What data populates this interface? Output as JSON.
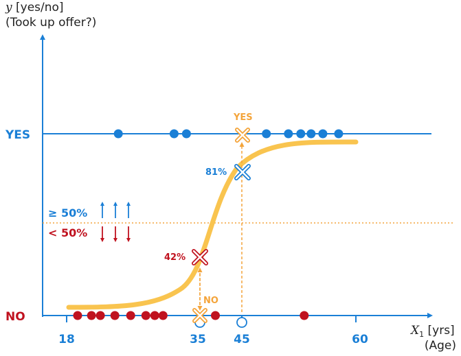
{
  "colors": {
    "axis": "#1a7fd6",
    "yes": "#1a7fd6",
    "no": "#c0121f",
    "curve": "#f9c44f",
    "guide": "#f4a43a",
    "text": "#222222"
  },
  "labels": {
    "y_var": "y",
    "y_unit": " [yes/no]",
    "y_desc": "(Took up offer?)",
    "x_var": "X",
    "x_sub": "1",
    "x_unit": " [yrs]",
    "x_desc": "(Age)",
    "yes": "YES",
    "no": "NO",
    "ge50": "≥ 50%",
    "lt50": "< 50%",
    "pred_yes": "YES",
    "pred_no": "NO",
    "p81": "81%",
    "p42": "42%"
  },
  "chart_data": {
    "type": "scatter",
    "xlabel": "X1 [yrs] (Age)",
    "ylabel": "y [yes/no] (Took up offer?)",
    "x_ticks": [
      18,
      35,
      45,
      60
    ],
    "y_categories": [
      "NO",
      "YES"
    ],
    "threshold": 0.5,
    "yes_points": [
      25.5,
      33.6,
      35.4,
      47.0,
      50.2,
      52.0,
      53.5,
      55.2,
      57.5
    ],
    "no_points": [
      19.6,
      21.6,
      22.9,
      25.0,
      27.3,
      29.5,
      30.8,
      32.0,
      39.6,
      52.5
    ],
    "predictions": [
      {
        "x": 35,
        "probability": 0.42,
        "predicted": "NO"
      },
      {
        "x": 45,
        "probability": 0.81,
        "predicted": "YES"
      }
    ]
  }
}
